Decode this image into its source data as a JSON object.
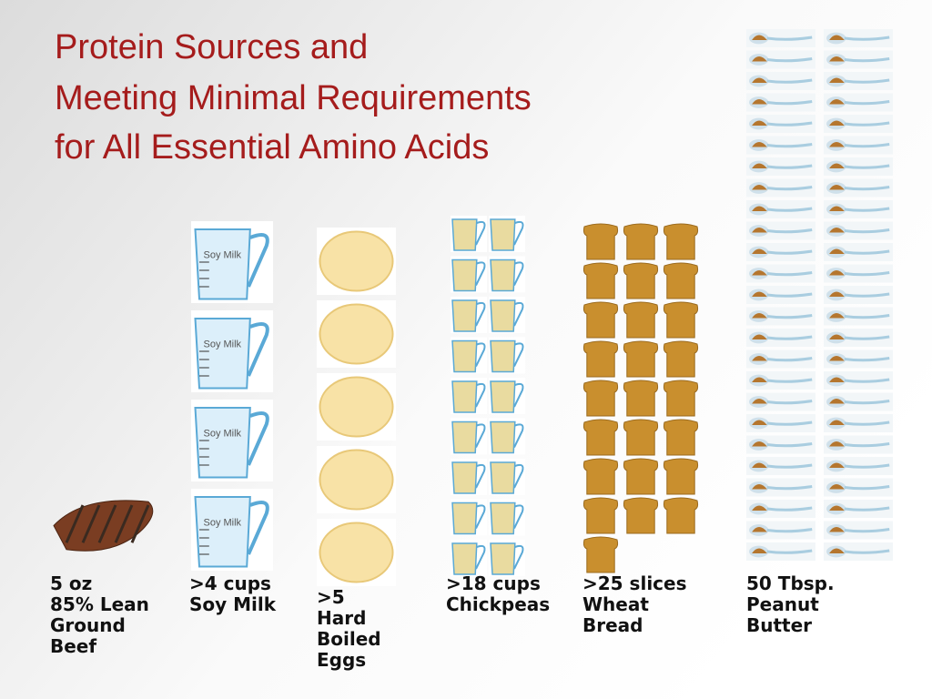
{
  "title": [
    "Protein Sources and",
    "Meeting Minimal Requirements",
    "for All Essential Amino Acids"
  ],
  "items": [
    {
      "label": [
        "5 oz",
        "85% Lean",
        "Ground",
        "Beef"
      ],
      "count": 1
    },
    {
      "label": [
        ">4 cups",
        "Soy Milk"
      ],
      "count": 4,
      "cup_label": "Soy Milk"
    },
    {
      "label": [
        ">5",
        "Hard",
        "Boiled",
        "Eggs"
      ],
      "count": 5
    },
    {
      "label": [
        ">18 cups",
        "Chickpeas"
      ],
      "count": 18
    },
    {
      "label": [
        ">25 slices",
        "Wheat",
        "Bread"
      ],
      "count": 25
    },
    {
      "label": [
        "50 Tbsp.",
        "Peanut",
        "Butter"
      ],
      "count": 50
    }
  ]
}
